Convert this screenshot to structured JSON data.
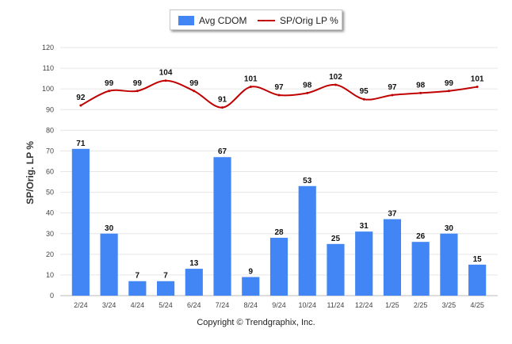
{
  "legend": {
    "bar_label": "Avg CDOM",
    "line_label": "SP/Orig LP %"
  },
  "footer": "Copyright © Trendgraphix, Inc.",
  "colors": {
    "bar": "#4285f4",
    "line": "#c00000",
    "grid": "#e6e6e6"
  },
  "chart_data": {
    "type": "bar",
    "categories": [
      "2/24",
      "3/24",
      "4/24",
      "5/24",
      "6/24",
      "7/24",
      "8/24",
      "9/24",
      "10/24",
      "11/24",
      "12/24",
      "1/25",
      "2/25",
      "3/25",
      "4/25"
    ],
    "series": [
      {
        "name": "Avg CDOM",
        "type": "bar",
        "values": [
          71,
          30,
          7,
          7,
          13,
          67,
          9,
          28,
          53,
          25,
          31,
          37,
          26,
          30,
          15
        ]
      },
      {
        "name": "SP/Orig LP %",
        "type": "line",
        "values": [
          92,
          99,
          99,
          104,
          99,
          91,
          101,
          97,
          98,
          102,
          95,
          97,
          98,
          99,
          101
        ]
      }
    ],
    "ylabel": "SP/Orig. LP %",
    "ylim": [
      0,
      120
    ],
    "yticks": [
      0,
      10,
      20,
      30,
      40,
      50,
      60,
      70,
      80,
      90,
      100,
      110,
      120
    ],
    "grid": true,
    "legend_position": "top-center"
  }
}
